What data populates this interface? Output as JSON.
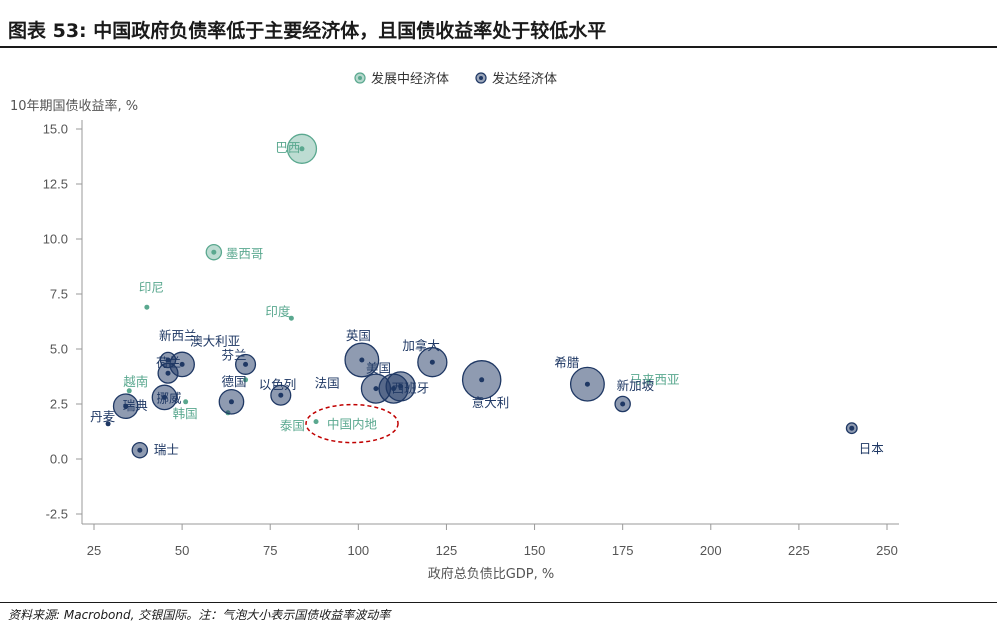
{
  "page": {
    "title": "图表 53: 中国政府负债率低于主要经济体，且国债收益率处于较低水平",
    "source": "资料来源: Macrobond, 交银国际。注：气泡大小表示国债收益率波动率"
  },
  "colors": {
    "developing": "#5aa88f",
    "developed": "#1f3864",
    "highlight_ring": "#c00000",
    "axis": "#999999"
  },
  "chart_data": {
    "type": "scatter",
    "xlabel": "政府总负债比GDP, %",
    "ylabel": "10年期国债收益率, %",
    "xlim": [
      25,
      250
    ],
    "ylim": [
      -2.5,
      15.0
    ],
    "x_ticks": [
      25,
      50,
      75,
      100,
      125,
      150,
      175,
      200,
      225,
      250
    ],
    "y_ticks": [
      "15.0",
      "12.5",
      "10.0",
      "7.5",
      "5.0",
      "2.5",
      "0.0",
      "-2.5"
    ],
    "y_tick_values": [
      15.0,
      12.5,
      10.0,
      7.5,
      5.0,
      2.5,
      0.0,
      -2.5
    ],
    "legend": {
      "position": "top-center",
      "entries": [
        "发展中经济体",
        "发达经济体"
      ]
    },
    "series": [
      {
        "name": "发展中经济体",
        "group": "developing",
        "points": [
          {
            "label": "巴西",
            "x": 84,
            "y": 14.1,
            "vol": 5
          },
          {
            "label": "墨西哥",
            "x": 59,
            "y": 9.4,
            "vol": 2
          },
          {
            "label": "印尼",
            "x": 40,
            "y": 6.9,
            "vol": 0
          },
          {
            "label": "印度",
            "x": 81,
            "y": 6.4,
            "vol": 0
          },
          {
            "label": "越南",
            "x": 35,
            "y": 3.1,
            "vol": 0
          },
          {
            "label": "韩国",
            "x": 51,
            "y": 2.6,
            "vol": 0
          },
          {
            "label": "泰国",
            "x": 63,
            "y": 2.1,
            "vol": 0
          },
          {
            "label": "中国内地",
            "x": 88,
            "y": 1.7,
            "vol": 0
          },
          {
            "label": "马来西亚",
            "x": 68,
            "y": 3.6,
            "vol": 0
          }
        ]
      },
      {
        "name": "发达经济体",
        "group": "developed",
        "points": [
          {
            "label": "新西兰",
            "x": 46,
            "y": 4.5,
            "vol": 2
          },
          {
            "label": "澳大利亚",
            "x": 50,
            "y": 4.3,
            "vol": 4
          },
          {
            "label": "挪威",
            "x": 45,
            "y": 2.8,
            "vol": 4
          },
          {
            "label": "荷兰",
            "x": 46,
            "y": 3.9,
            "vol": 3
          },
          {
            "label": "瑞典",
            "x": 34,
            "y": 2.4,
            "vol": 4
          },
          {
            "label": "丹麦",
            "x": 29,
            "y": 1.6,
            "vol": 0
          },
          {
            "label": "瑞士",
            "x": 38,
            "y": 0.4,
            "vol": 2
          },
          {
            "label": "德国",
            "x": 64,
            "y": 2.6,
            "vol": 4
          },
          {
            "label": "芬兰",
            "x": 68,
            "y": 4.3,
            "vol": 3
          },
          {
            "label": "以色列",
            "x": 78,
            "y": 2.9,
            "vol": 3
          },
          {
            "label": "英国",
            "x": 101,
            "y": 4.5,
            "vol": 6
          },
          {
            "label": "美国",
            "x": 105,
            "y": 3.2,
            "vol": 5
          },
          {
            "label": "法国",
            "x": 110,
            "y": 3.2,
            "vol": 5
          },
          {
            "label": "加拿大",
            "x": 121,
            "y": 4.4,
            "vol": 5
          },
          {
            "label": "西班牙",
            "x": 112,
            "y": 3.3,
            "vol": 5
          },
          {
            "label": "意大利",
            "x": 135,
            "y": 3.6,
            "vol": 7
          },
          {
            "label": "希腊",
            "x": 165,
            "y": 3.4,
            "vol": 6
          },
          {
            "label": "新加坡",
            "x": 175,
            "y": 2.5,
            "vol": 2
          },
          {
            "label": "日本",
            "x": 240,
            "y": 1.4,
            "vol": 1
          }
        ]
      }
    ]
  }
}
